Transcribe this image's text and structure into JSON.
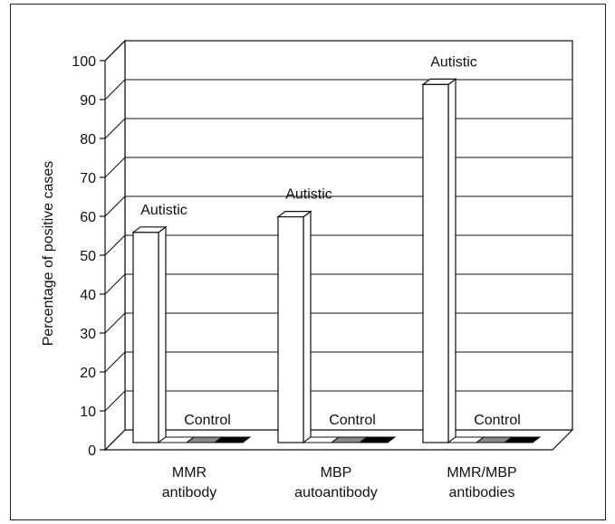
{
  "chart_data": {
    "type": "bar",
    "ylabel": "Percentage of positive cases",
    "ylim": [
      0,
      100
    ],
    "yticks": [
      "0",
      "10",
      "20",
      "30",
      "40",
      "50",
      "60",
      "70",
      "80",
      "90",
      "100"
    ],
    "categories": [
      {
        "line1": "MMR",
        "line2": "antibody"
      },
      {
        "line1": "MBP",
        "line2": "autoantibody"
      },
      {
        "line1": "MMR/MBP",
        "line2": "antibodies"
      }
    ],
    "series": [
      {
        "name": "Autistic",
        "values": [
          54,
          58,
          92
        ],
        "color": "#ffffff"
      },
      {
        "name": "Control",
        "values": [
          0,
          0,
          0
        ],
        "color": "#888888"
      }
    ],
    "grid": true,
    "style": "3d"
  }
}
